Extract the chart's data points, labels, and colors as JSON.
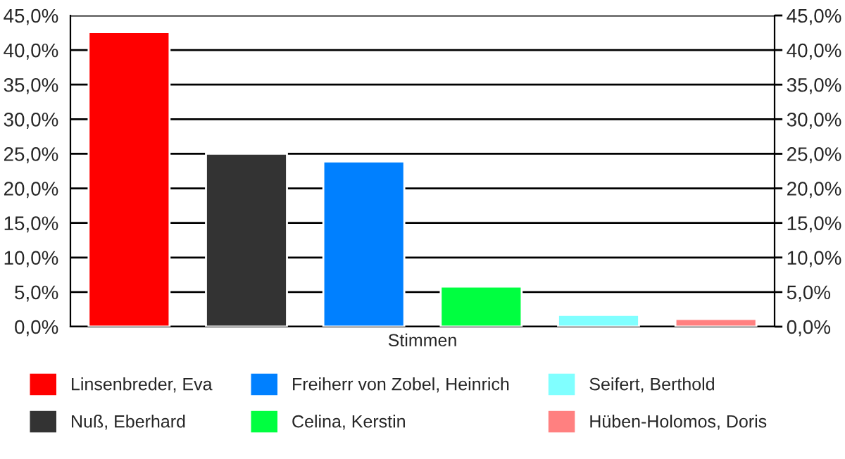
{
  "chart_data": {
    "type": "bar",
    "categories": [
      "Stimmen"
    ],
    "series": [
      {
        "name": "Linsenbreder, Eva",
        "color": "#ff0000",
        "values": [
          42.6
        ]
      },
      {
        "name": "Nuß, Eberhard",
        "color": "#333333",
        "values": [
          25.0
        ]
      },
      {
        "name": "Freiherr von Zobel, Heinrich",
        "color": "#0080ff",
        "values": [
          23.9
        ]
      },
      {
        "name": "Celina, Kerstin",
        "color": "#00ff40",
        "values": [
          5.8
        ]
      },
      {
        "name": "Seifert, Berthold",
        "color": "#80ffff",
        "values": [
          1.7
        ]
      },
      {
        "name": "Hüben-Holomos, Doris",
        "color": "#ff8080",
        "values": [
          1.1
        ]
      }
    ],
    "ylim": [
      0,
      45
    ],
    "yticks": [
      {
        "value": 0,
        "label": "0,0%"
      },
      {
        "value": 5,
        "label": "5,0%"
      },
      {
        "value": 10,
        "label": "10,0%"
      },
      {
        "value": 15,
        "label": "15,0%"
      },
      {
        "value": 20,
        "label": "20,0%"
      },
      {
        "value": 25,
        "label": "25,0%"
      },
      {
        "value": 30,
        "label": "30,0%"
      },
      {
        "value": 35,
        "label": "35,0%"
      },
      {
        "value": 40,
        "label": "40,0%"
      },
      {
        "value": 45,
        "label": "45,0%"
      }
    ],
    "grid": "y",
    "legend": "bottom"
  }
}
